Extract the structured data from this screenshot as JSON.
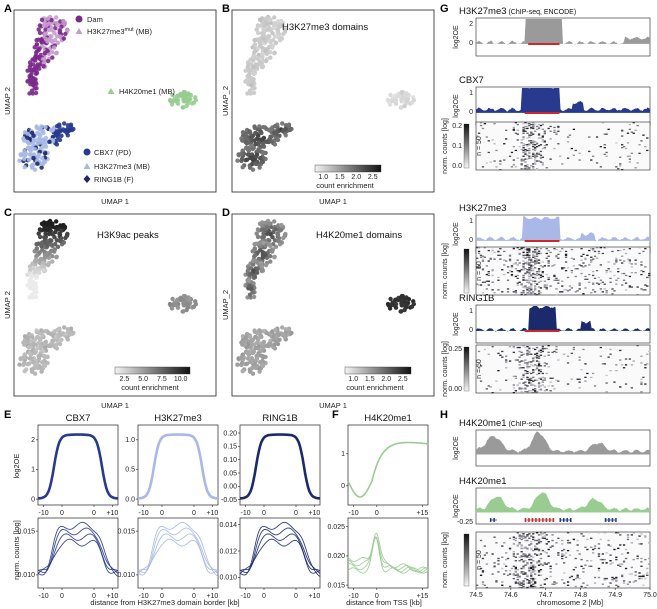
{
  "panel_labels": [
    "A",
    "B",
    "C",
    "D",
    "E",
    "F",
    "G",
    "H"
  ],
  "colors": {
    "dam": "#7b2a8c",
    "h3k27me3_mut": "#c59ccd",
    "h4k20me1": "#98cc90",
    "cbx7": "#273a8d",
    "h3k27me3": "#a9b8e6",
    "ring1b": "#1b2a6b",
    "grey_track": "#9a9a9a",
    "red_bar": "#cc2a2a"
  },
  "umap": {
    "xlabel": "UMAP 1",
    "ylabel_a": "UMAP 2",
    "ylabel_b": "UMAP_2",
    "legend": {
      "dam": "Dam",
      "h3k27me3_mut": "H3K27me3",
      "h3k27me3_mut_sup": "mut",
      "h3k27me3_mut_tail": " (MB)",
      "h4k20me1": "H4K20me1 (MB)",
      "cbx7": "CBX7 (PD)",
      "h3k27me3": "H3K27me3 (MB)",
      "ring1b": "RING1B (F)"
    },
    "b_title": "H3K27me3 domains",
    "c_title": "H3K9ac peaks",
    "d_title": "H4K20me1 domains",
    "colorbar_label": "count enrichment",
    "b_ticks": [
      "1.0",
      "1.5",
      "2.0",
      "2.5"
    ],
    "c_ticks": [
      "2.5",
      "5.0",
      "7.5",
      "10.0"
    ],
    "d_ticks": [
      "1.0",
      "1.5",
      "2.0",
      "2.5"
    ]
  },
  "chart_data": [
    {
      "type": "line",
      "panel": "E",
      "title": "CBX7",
      "ylabel_top": "log2OE",
      "ylabel_bottom": "norm. counts [log]",
      "x_ticks": [
        "-10",
        "0",
        "0",
        "+10"
      ],
      "top_yticks": [
        "2",
        "1",
        "0"
      ],
      "top_ylim": [
        -0.2,
        2.5
      ],
      "bottom_yticks": [
        "0.015",
        "0.010"
      ],
      "bottom_ylim": [
        0.0085,
        0.0165
      ]
    },
    {
      "type": "line",
      "panel": "E",
      "title": "H3K27me3",
      "x_ticks": [
        "-10",
        "0",
        "0",
        "+10"
      ],
      "top_yticks": [
        "1.0",
        "0.5",
        "0.0"
      ],
      "top_ylim": [
        -0.1,
        1.25
      ],
      "bottom_yticks": [
        "0.015",
        "0.010"
      ],
      "bottom_ylim": [
        0.0085,
        0.0165
      ]
    },
    {
      "type": "line",
      "panel": "E",
      "title": "RING1B",
      "x_ticks": [
        "-10",
        "0",
        "0",
        "+10"
      ],
      "top_yticks": [
        "0.20",
        "0.15",
        "0.10",
        "0.05",
        "0.00",
        "-0.05"
      ],
      "top_ylim": [
        -0.07,
        0.23
      ],
      "bottom_yticks": [
        "0.014",
        "0.012",
        "0.010"
      ],
      "bottom_ylim": [
        0.0092,
        0.0145
      ]
    },
    {
      "type": "line",
      "panel": "F",
      "title": "H4K20me1",
      "xlabel": "distance from TSS [kb]",
      "x_ticks": [
        "-10",
        "0",
        "+15"
      ],
      "top_yticks": [
        "1",
        "0"
      ],
      "top_ylim": [
        -0.6,
        1.9
      ],
      "bottom_yticks": [
        "0.025",
        "0.020",
        "0.015"
      ],
      "bottom_ylim": [
        0.0145,
        0.0265
      ]
    },
    {
      "type": "area",
      "panel": "G",
      "tracks": [
        "H3K27me3",
        "CBX7",
        "H3K27me3",
        "RING1B"
      ],
      "track_notes": [
        "(ChIP-seq, ENCODE)",
        "",
        "",
        ""
      ],
      "ylabel_top": "log2OE",
      "top_yticks": [
        [
          "2",
          "0"
        ],
        [
          "1",
          "0"
        ],
        [
          "1",
          "0"
        ],
        [
          "1",
          "0"
        ]
      ],
      "heatmap_ylabel": "norm. counts [log]",
      "heatmap_n": "n = 50",
      "heatmap_cbar_ticks": [
        [
          "0.2",
          "0.1",
          "0.0"
        ],
        [],
        [
          "0.25",
          "0.00"
        ]
      ]
    },
    {
      "type": "area",
      "panel": "H",
      "tracks": [
        "H4K20me1",
        "H4K20me1"
      ],
      "track_notes": [
        "(ChIP-seq)",
        ""
      ],
      "xlabel": "chromosome 2 [Mb]",
      "x_ticks": [
        "74.5",
        "74.6",
        "74.7",
        "74.8",
        "74.9",
        "75.0"
      ],
      "xlim": [
        74.5,
        75.0
      ],
      "extra_ytick": "-0.25"
    }
  ],
  "e_xlabel": "distance from H3K27me3 domain border [kb]"
}
